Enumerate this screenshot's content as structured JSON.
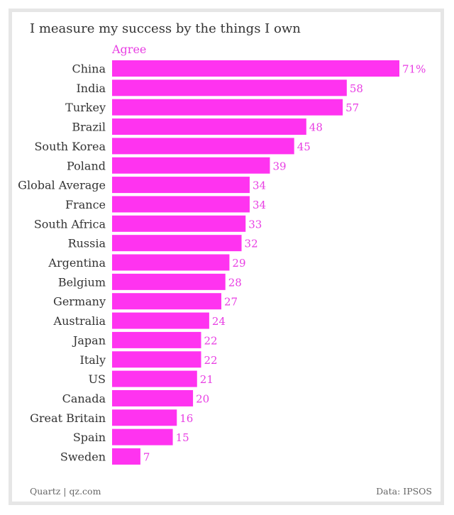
{
  "chart_data": {
    "type": "bar",
    "orientation": "horizontal",
    "title": "I measure my success by the things I own",
    "series_name": "Agree",
    "categories": [
      "China",
      "India",
      "Turkey",
      "Brazil",
      "South Korea",
      "Poland",
      "Global Average",
      "France",
      "South Africa",
      "Russia",
      "Argentina",
      "Belgium",
      "Germany",
      "Australia",
      "Japan",
      "Italy",
      "US",
      "Canada",
      "Great Britain",
      "Spain",
      "Sweden"
    ],
    "values": [
      71,
      58,
      57,
      48,
      45,
      39,
      34,
      34,
      33,
      32,
      29,
      28,
      27,
      24,
      22,
      22,
      21,
      20,
      16,
      15,
      7
    ],
    "value_labels": [
      "71%",
      "58",
      "57",
      "48",
      "45",
      "39",
      "34",
      "34",
      "33",
      "32",
      "29",
      "28",
      "27",
      "24",
      "22",
      "22",
      "21",
      "20",
      "16",
      "15",
      "7"
    ],
    "xlim": [
      0,
      71
    ],
    "grid": false,
    "bar_color": "#ff33f0",
    "label_color": "#e83ee3"
  },
  "footer": {
    "source_left": "Quartz | qz.com",
    "source_right": "Data: IPSOS"
  }
}
